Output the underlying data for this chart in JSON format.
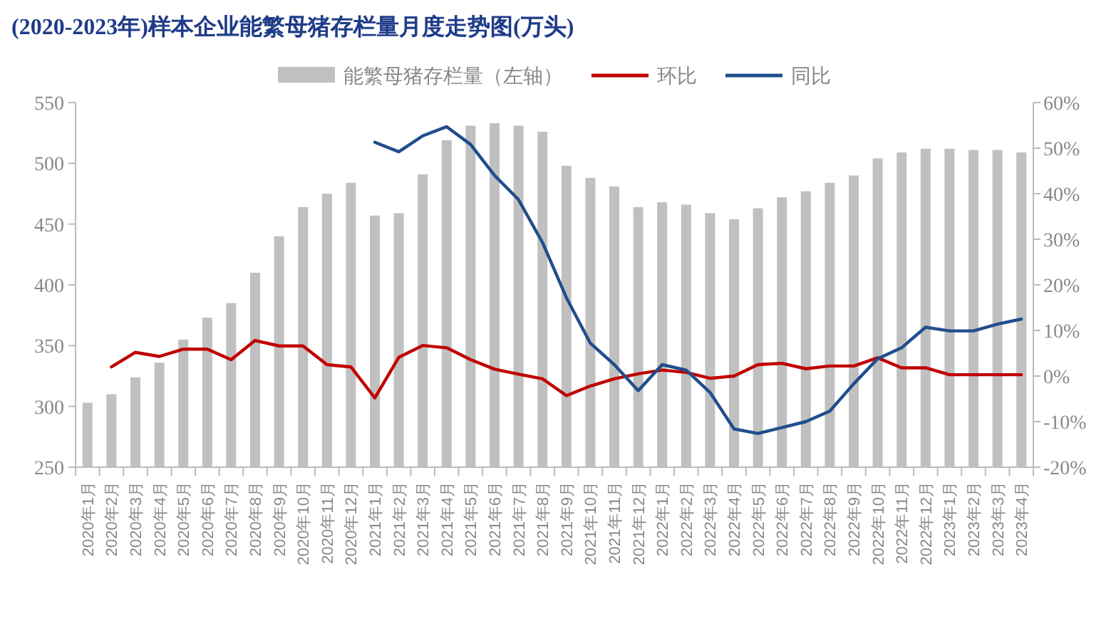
{
  "chart_data": {
    "type": "bar",
    "title": "(2020-2023年)样本企业能繁母猪存栏量月度走势图(万头)",
    "categories": [
      "2020年1月",
      "2020年2月",
      "2020年3月",
      "2020年4月",
      "2020年5月",
      "2020年6月",
      "2020年7月",
      "2020年8月",
      "2020年9月",
      "2020年10月",
      "2020年11月",
      "2020年12月",
      "2021年1月",
      "2021年2月",
      "2021年3月",
      "2021年4月",
      "2021年5月",
      "2021年6月",
      "2021年7月",
      "2021年8月",
      "2021年9月",
      "2021年10月",
      "2021年11月",
      "2021年12月",
      "2022年1月",
      "2022年2月",
      "2022年3月",
      "2022年4月",
      "2022年5月",
      "2022年6月",
      "2022年7月",
      "2022年8月",
      "2022年9月",
      "2022年10月",
      "2022年11月",
      "2022年12月",
      "2023年1月",
      "2023年2月",
      "2023年3月",
      "2023年4月"
    ],
    "series": [
      {
        "name": "能繁母猪存栏量（左轴）",
        "color": "#c0c0c0",
        "values": [
          303,
          310,
          324,
          336,
          355,
          373,
          385,
          410,
          440,
          464,
          475,
          484,
          457,
          459,
          491,
          519,
          531,
          533,
          531,
          526,
          498,
          488,
          481,
          464,
          468,
          466,
          459,
          454,
          463,
          472,
          477,
          484,
          490,
          504,
          509,
          512,
          512,
          511,
          511,
          509
        ]
      },
      {
        "name": "环比",
        "type": "line",
        "axis": "y2",
        "color": "#c00000",
        "values": [
          null,
          2.0,
          5.2,
          4.3,
          5.9,
          5.9,
          3.6,
          7.8,
          6.6,
          6.6,
          2.5,
          2.0,
          -4.8,
          4.1,
          6.7,
          6.2,
          3.6,
          1.5,
          0.4,
          -0.6,
          -4.3,
          -2.2,
          -0.6,
          0.5,
          1.3,
          0.8,
          -0.5,
          0,
          2.5,
          2.8,
          1.6,
          2.2,
          2.2,
          4.0,
          1.8,
          1.8,
          0.3,
          0.3,
          0.3,
          0.3
        ]
      },
      {
        "name": "同比",
        "type": "line",
        "axis": "y2",
        "color": "#1f4e8c",
        "values": [
          null,
          null,
          null,
          null,
          null,
          null,
          null,
          null,
          null,
          null,
          null,
          null,
          51.3,
          49.2,
          52.7,
          54.7,
          50.8,
          44.0,
          38.7,
          29.3,
          17.2,
          7.2,
          2.5,
          -3.2,
          2.5,
          1.3,
          -3.6,
          -11.6,
          -12.6,
          -11.3,
          -10.0,
          -7.7,
          -1.7,
          3.8,
          6.2,
          10.7,
          9.9,
          9.9,
          11.4,
          12.5
        ]
      }
    ],
    "ylim": [
      250,
      550
    ],
    "yticks": [
      250,
      300,
      350,
      400,
      450,
      500,
      550
    ],
    "y2lim": [
      -20,
      60
    ],
    "y2ticks": [
      {
        "value": -20,
        "label": "-20%"
      },
      {
        "value": -10,
        "label": "-10%"
      },
      {
        "value": 0,
        "label": "0%"
      },
      {
        "value": 10,
        "label": "10%"
      },
      {
        "value": 20,
        "label": "20%"
      },
      {
        "value": 30,
        "label": "30%"
      },
      {
        "value": 40,
        "label": "40%"
      },
      {
        "value": 50,
        "label": "50%"
      },
      {
        "value": 60,
        "label": "60%"
      }
    ],
    "legend": "top",
    "marker": "none",
    "line_style": "solid"
  }
}
